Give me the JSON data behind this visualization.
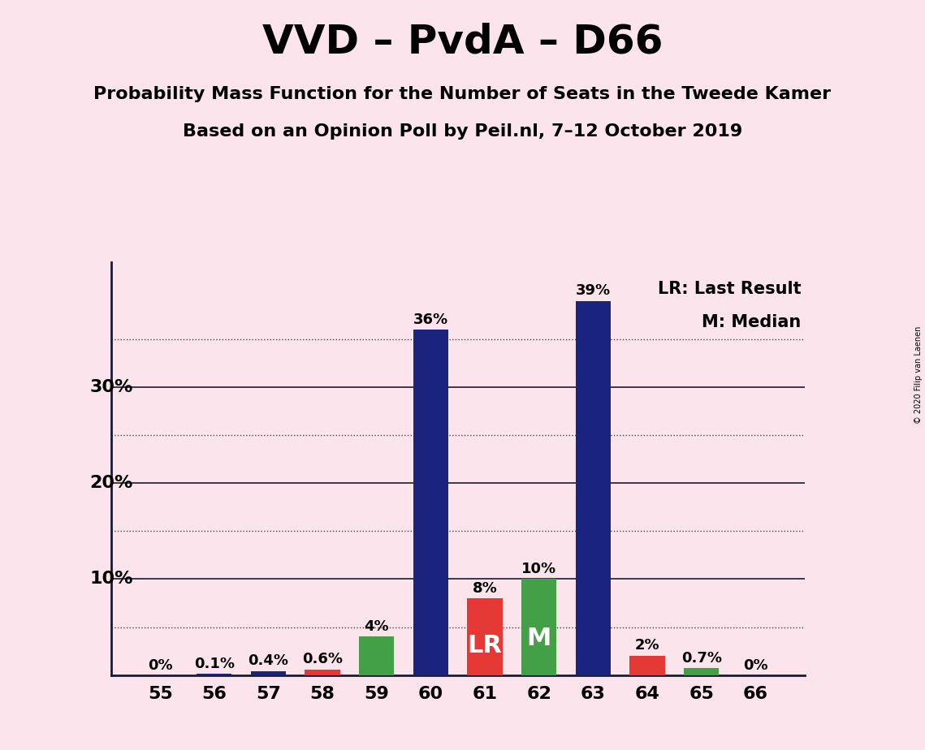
{
  "title": "VVD – PvdA – D66",
  "subtitle1": "Probability Mass Function for the Number of Seats in the Tweede Kamer",
  "subtitle2": "Based on an Opinion Poll by Peil.nl, 7–12 October 2019",
  "copyright": "© 2020 Filip van Laenen",
  "categories": [
    55,
    56,
    57,
    58,
    59,
    60,
    61,
    62,
    63,
    64,
    65,
    66
  ],
  "values": [
    0.0,
    0.1,
    0.4,
    0.6,
    4.0,
    36.0,
    8.0,
    10.0,
    39.0,
    2.0,
    0.7,
    0.0
  ],
  "labels": [
    "0%",
    "0.1%",
    "0.4%",
    "0.6%",
    "4%",
    "36%",
    "8%",
    "10%",
    "39%",
    "2%",
    "0.7%",
    "0%"
  ],
  "bar_colors": [
    "#1a237e",
    "#1a237e",
    "#1a237e",
    "#e53935",
    "#43a047",
    "#1a237e",
    "#e53935",
    "#43a047",
    "#1a237e",
    "#e53935",
    "#43a047",
    "#1a237e"
  ],
  "bar_labels": [
    "",
    "",
    "",
    "",
    "",
    "",
    "LR",
    "M",
    "",
    "",
    "",
    ""
  ],
  "background_color": "#fce4ec",
  "plot_bg_color": "#fce4ec",
  "title_fontsize": 36,
  "subtitle_fontsize": 16,
  "solid_yticks": [
    10,
    20,
    30
  ],
  "dotted_yticks": [
    5,
    15,
    25,
    35
  ],
  "all_yticks": [
    5,
    10,
    15,
    20,
    25,
    30,
    35
  ],
  "legend_lr": "LR: Last Result",
  "legend_m": "M: Median",
  "ylim": [
    0,
    43
  ],
  "bar_width": 0.65
}
